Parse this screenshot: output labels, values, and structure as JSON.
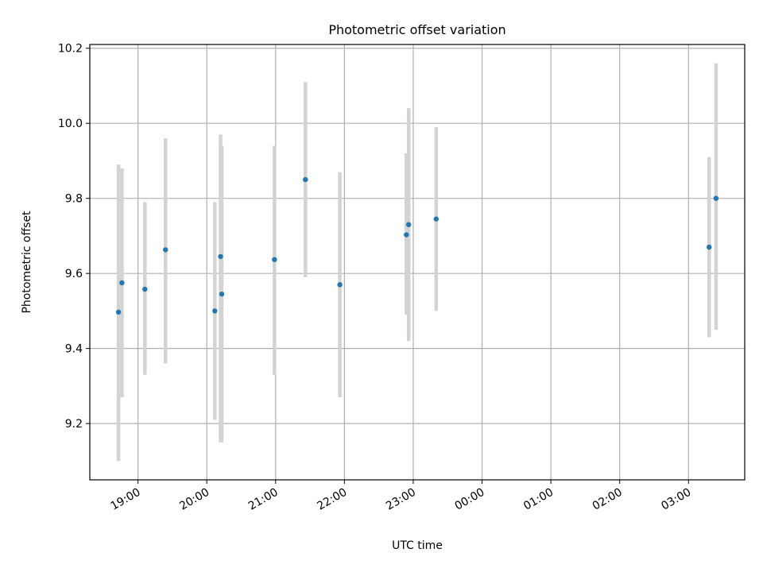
{
  "chart_data": {
    "type": "scatter",
    "title": "Photometric offset variation",
    "xlabel": "UTC time",
    "ylabel": "Photometric offset",
    "x_unit": "UTC time (HH:MM); times after midnight fall on the following day",
    "xlim": [
      "18:18",
      "03:49"
    ],
    "ylim": [
      9.05,
      10.21
    ],
    "xticks": [
      "19:00",
      "20:00",
      "21:00",
      "22:00",
      "23:00",
      "00:00",
      "01:00",
      "02:00",
      "03:00"
    ],
    "yticks": [
      9.2,
      9.4,
      9.6,
      9.8,
      10.0,
      10.2
    ],
    "ytick_labels": [
      "9.2",
      "9.4",
      "9.6",
      "9.8",
      "10.0",
      "10.2"
    ],
    "grid": true,
    "legend": null,
    "colors": {
      "point": "#1f77b4",
      "errorbar": "#d3d3d3",
      "grid": "#b0b0b0"
    },
    "series": [
      {
        "points": [
          {
            "x": "18:43",
            "y": 9.497,
            "ylow": 9.1,
            "yhigh": 9.89
          },
          {
            "x": "18:46",
            "y": 9.575,
            "ylow": 9.27,
            "yhigh": 9.88
          },
          {
            "x": "19:06",
            "y": 9.558,
            "ylow": 9.33,
            "yhigh": 9.79
          },
          {
            "x": "19:24",
            "y": 9.663,
            "ylow": 9.36,
            "yhigh": 9.96
          },
          {
            "x": "20:07",
            "y": 9.5,
            "ylow": 9.21,
            "yhigh": 9.79
          },
          {
            "x": "20:12",
            "y": 9.645,
            "ylow": 9.15,
            "yhigh": 9.97
          },
          {
            "x": "20:13",
            "y": 9.545,
            "ylow": 9.15,
            "yhigh": 9.94
          },
          {
            "x": "20:59",
            "y": 9.637,
            "ylow": 9.33,
            "yhigh": 9.94
          },
          {
            "x": "21:26",
            "y": 9.85,
            "ylow": 9.59,
            "yhigh": 10.11
          },
          {
            "x": "21:56",
            "y": 9.57,
            "ylow": 9.27,
            "yhigh": 9.87
          },
          {
            "x": "22:54",
            "y": 9.703,
            "ylow": 9.49,
            "yhigh": 9.92
          },
          {
            "x": "22:56",
            "y": 9.73,
            "ylow": 9.42,
            "yhigh": 10.04
          },
          {
            "x": "23:20",
            "y": 9.745,
            "ylow": 9.5,
            "yhigh": 9.99
          },
          {
            "x": "03:18",
            "y": 9.67,
            "ylow": 9.43,
            "yhigh": 9.91
          },
          {
            "x": "03:24",
            "y": 9.8,
            "ylow": 9.45,
            "yhigh": 10.16
          }
        ]
      }
    ]
  }
}
